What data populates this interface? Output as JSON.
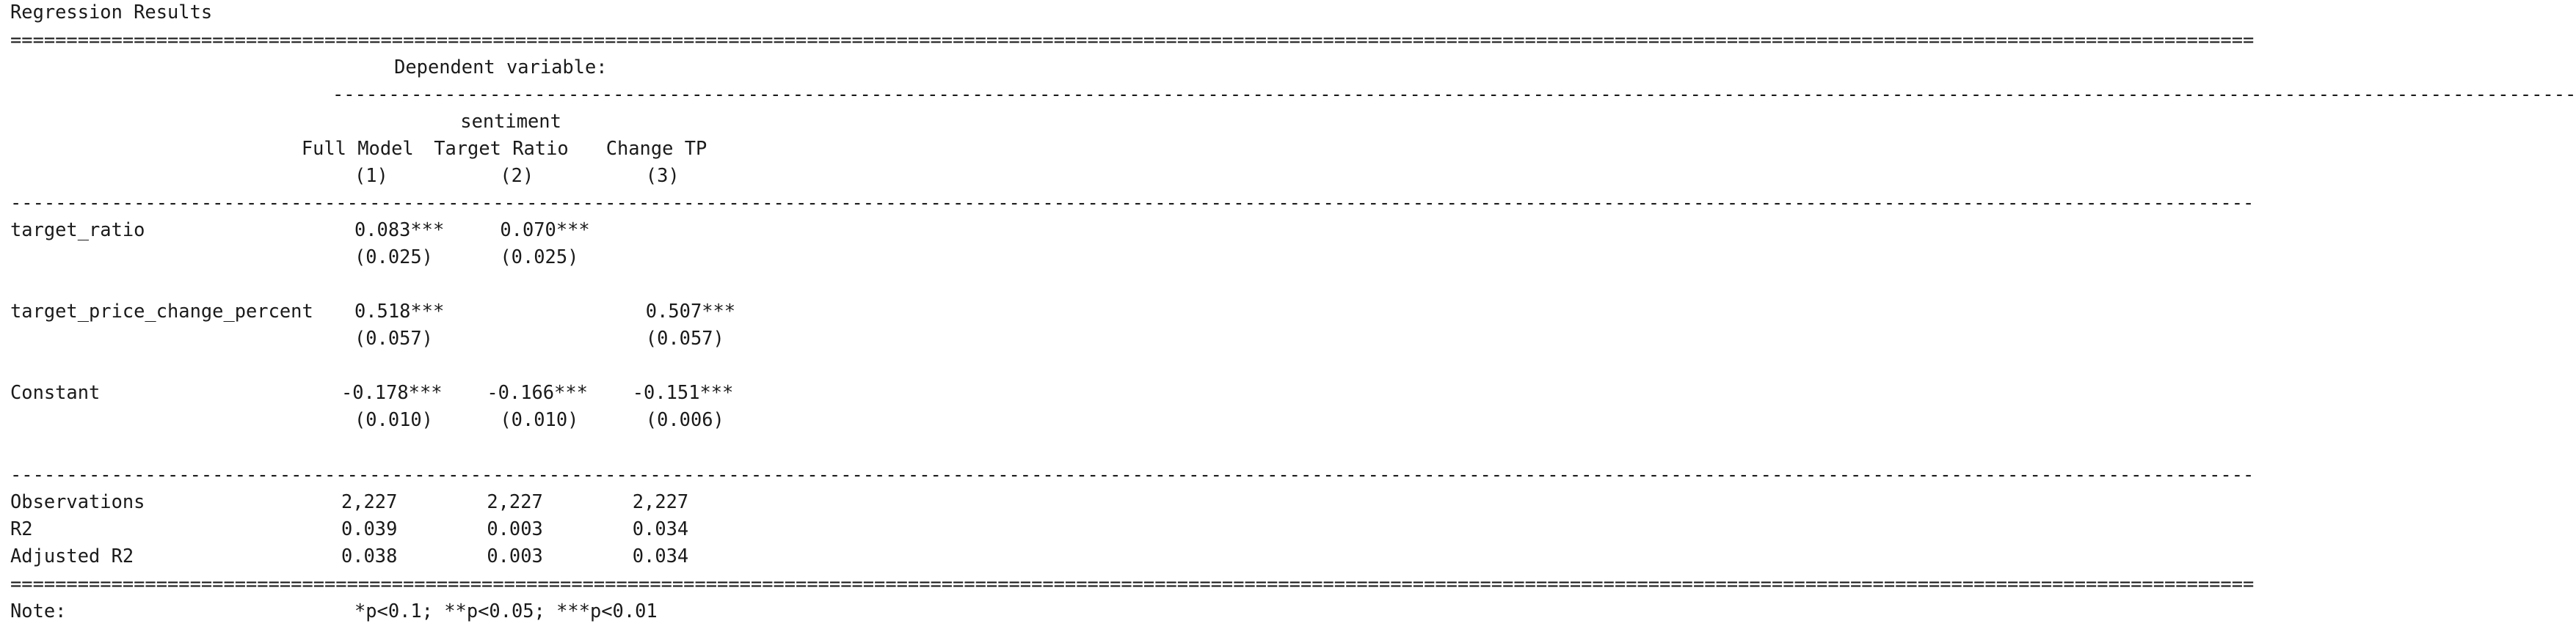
{
  "title": "Regression Results",
  "header": {
    "dependent_caption": "Dependent variable:",
    "dependent_name": "sentiment",
    "model_names": [
      "Full Model",
      "Target Ratio",
      "Change TP"
    ],
    "model_numbers": [
      "(1)",
      "(2)",
      "(3)"
    ]
  },
  "rows": [
    {
      "variable": "target_ratio",
      "coefficients": [
        "0.083***",
        "0.070***",
        ""
      ],
      "std_errors": [
        "(0.025)",
        "(0.025)",
        ""
      ]
    },
    {
      "variable": "target_price_change_percent",
      "coefficients": [
        "0.518***",
        "",
        "0.507***"
      ],
      "std_errors": [
        "(0.057)",
        "",
        "(0.057)"
      ]
    },
    {
      "variable": "Constant",
      "coefficients": [
        "-0.178***",
        "-0.166***",
        "-0.151***"
      ],
      "std_errors": [
        "(0.010)",
        "(0.010)",
        "(0.006)"
      ]
    }
  ],
  "statistics": [
    {
      "label": "Observations",
      "values": [
        "2,227",
        "2,227",
        "2,227"
      ]
    },
    {
      "label": "R2",
      "values": [
        "0.039",
        "0.003",
        "0.034"
      ]
    },
    {
      "label": "Adjusted R2",
      "values": [
        "0.038",
        "0.003",
        "0.034"
      ]
    }
  ],
  "note": {
    "label": "Note:",
    "text": "*p<0.1; **p<0.05; ***p<0.01"
  }
}
